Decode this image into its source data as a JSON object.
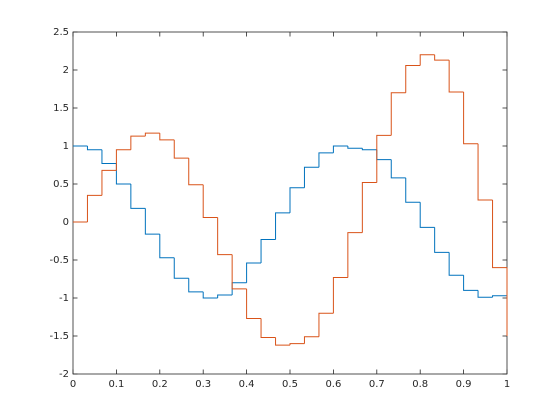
{
  "chart_data": {
    "type": "stairs",
    "x": [
      0,
      0.0333,
      0.0667,
      0.1,
      0.1333,
      0.1667,
      0.2,
      0.2333,
      0.2667,
      0.3,
      0.3333,
      0.3667,
      0.4,
      0.4333,
      0.4667,
      0.5,
      0.5333,
      0.5667,
      0.6,
      0.6333,
      0.6667,
      0.7,
      0.7333,
      0.7667,
      0.8,
      0.8333,
      0.8667,
      0.9,
      0.9333,
      0.9667,
      1
    ],
    "series": [
      {
        "color": "#0072bd",
        "values": [
          1,
          0.95,
          0.77,
          0.5,
          0.18,
          -0.16,
          -0.47,
          -0.74,
          -0.92,
          -1,
          -0.96,
          -0.8,
          -0.54,
          -0.23,
          0.12,
          0.45,
          0.72,
          0.91,
          1,
          0.97,
          0.95,
          0.82,
          0.58,
          0.26,
          -0.07,
          -0.4,
          -0.7,
          -0.9,
          -0.99,
          -0.97,
          -0.96
        ]
      },
      {
        "color": "#d95319",
        "values": [
          0,
          0.35,
          0.68,
          0.95,
          1.13,
          1.17,
          1.08,
          0.84,
          0.49,
          0.06,
          -0.43,
          -0.88,
          -1.27,
          -1.52,
          -1.62,
          -1.6,
          -1.51,
          -1.2,
          -0.73,
          -0.14,
          0.52,
          1.14,
          1.7,
          2.06,
          2.2,
          2.13,
          1.71,
          1.03,
          0.29,
          -0.6,
          -1.5
        ]
      }
    ],
    "xlim": [
      0,
      1
    ],
    "xticks": [
      0,
      0.1,
      0.2,
      0.3,
      0.4,
      0.5,
      0.6,
      0.7,
      0.8,
      0.9,
      1
    ],
    "ylim": [
      -2,
      2.5
    ],
    "yticks": [
      -2,
      -1.5,
      -1,
      -0.5,
      0,
      0.5,
      1,
      1.5,
      2,
      2.5
    ],
    "grid": false
  }
}
